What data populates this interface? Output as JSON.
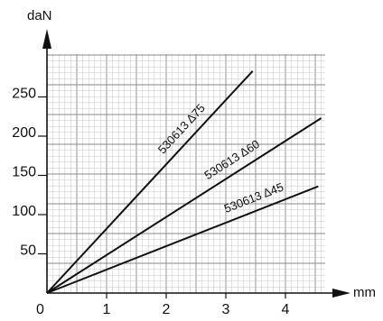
{
  "chart_data": {
    "type": "line",
    "title": "",
    "xlabel": "mm",
    "ylabel": "daN",
    "x_ticks": [
      1,
      2,
      3,
      4
    ],
    "y_ticks": [
      50,
      100,
      150,
      200,
      250
    ],
    "origin_label": "0",
    "xlim": [
      0,
      4.7
    ],
    "ylim": [
      0,
      290
    ],
    "grid": true,
    "series": [
      {
        "name": "530613 Δ75",
        "x": [
          0,
          3.45
        ],
        "y": [
          0,
          283
        ]
      },
      {
        "name": "530613 Δ60",
        "x": [
          0,
          4.6
        ],
        "y": [
          0,
          223
        ]
      },
      {
        "name": "530613 Δ45",
        "x": [
          0,
          4.55
        ],
        "y": [
          0,
          136
        ]
      }
    ]
  }
}
